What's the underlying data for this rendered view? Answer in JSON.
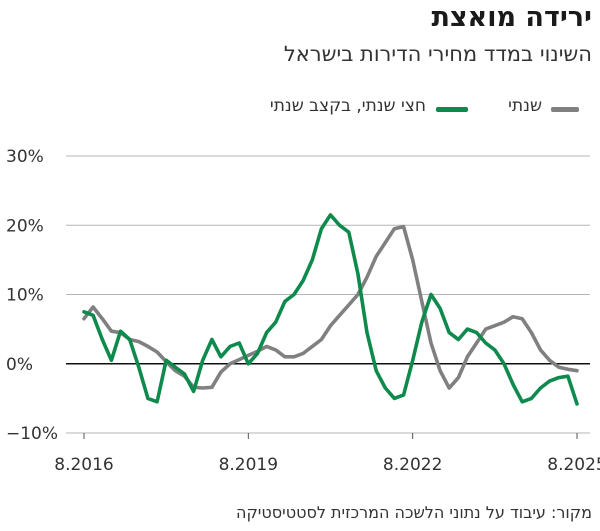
{
  "header": {
    "title": "ירידה מואצת",
    "subtitle": "השינוי במדד מחירי הדירות בישראל"
  },
  "legend": {
    "gray_label": "שנתי",
    "green_label": "חצי שנתי, בקצב שנתי"
  },
  "source": "מקור: עיבוד על נתוני הלשכה המרכזית לסטטיסטיקה",
  "colors": {
    "annual": "#808080",
    "semi_annual": "#0f8a4d",
    "axis": "#111111",
    "grid": "#b5b5b5"
  },
  "chart_data": {
    "type": "line",
    "title": "ירידה מואצת",
    "subtitle": "השינוי במדד מחירי הדירות בישראל",
    "y_unit": "%",
    "ylim": [
      -10,
      30
    ],
    "y_ticks": [
      30,
      20,
      10,
      0,
      -10
    ],
    "y_tick_labels": [
      "30%",
      "20%",
      "10%",
      "0%",
      "−10%"
    ],
    "x_ticks": [
      2016.583,
      2019.583,
      2022.583,
      2025.583
    ],
    "x_tick_labels": [
      "8.2016",
      "8.2019",
      "8.2022",
      "8.2025"
    ],
    "grid": "horizontal",
    "legend_position": "top",
    "series": [
      {
        "name": "שנתי",
        "color": "#808080",
        "x": [
          2016.583,
          2016.75,
          2016.917,
          2017.083,
          2017.25,
          2017.417,
          2017.583,
          2017.75,
          2017.917,
          2018.083,
          2018.25,
          2018.417,
          2018.583,
          2018.75,
          2018.917,
          2019.083,
          2019.25,
          2019.417,
          2019.583,
          2019.75,
          2019.917,
          2020.083,
          2020.25,
          2020.417,
          2020.583,
          2020.75,
          2020.917,
          2021.083,
          2021.25,
          2021.417,
          2021.583,
          2021.75,
          2021.917,
          2022.083,
          2022.25,
          2022.417,
          2022.583,
          2022.75,
          2022.917,
          2023.083,
          2023.25,
          2023.417,
          2023.583,
          2023.75,
          2023.917,
          2024.083,
          2024.25,
          2024.417,
          2024.583,
          2024.75,
          2024.917,
          2025.083,
          2025.25,
          2025.417,
          2025.583
        ],
        "values": [
          6.5,
          8.2,
          6.5,
          4.7,
          4.5,
          3.5,
          3.2,
          2.5,
          1.7,
          0.3,
          -1.0,
          -1.8,
          -3.4,
          -3.5,
          -3.4,
          -1.2,
          0.0,
          0.6,
          1.2,
          1.8,
          2.5,
          2.0,
          1.0,
          1.0,
          1.5,
          2.5,
          3.5,
          5.5,
          7.0,
          8.5,
          10.0,
          12.5,
          15.5,
          17.5,
          19.5,
          19.8,
          15.0,
          9.0,
          3.0,
          -1.0,
          -3.5,
          -2.0,
          1.0,
          3.0,
          5.0,
          5.5,
          6.0,
          6.8,
          6.5,
          4.5,
          2.0,
          0.5,
          -0.5,
          -0.8,
          -1.0
        ]
      },
      {
        "name": "חצי שנתי, בקצב שנתי",
        "color": "#0f8a4d",
        "x": [
          2016.583,
          2016.75,
          2016.917,
          2017.083,
          2017.25,
          2017.417,
          2017.583,
          2017.75,
          2017.917,
          2018.083,
          2018.25,
          2018.417,
          2018.583,
          2018.75,
          2018.917,
          2019.083,
          2019.25,
          2019.417,
          2019.583,
          2019.75,
          2019.917,
          2020.083,
          2020.25,
          2020.417,
          2020.583,
          2020.75,
          2020.917,
          2021.083,
          2021.25,
          2021.417,
          2021.583,
          2021.75,
          2021.917,
          2022.083,
          2022.25,
          2022.417,
          2022.583,
          2022.75,
          2022.917,
          2023.083,
          2023.25,
          2023.417,
          2023.583,
          2023.75,
          2023.917,
          2024.083,
          2024.25,
          2024.417,
          2024.583,
          2024.75,
          2024.917,
          2025.083,
          2025.25,
          2025.417,
          2025.583
        ],
        "values": [
          7.5,
          7.0,
          3.5,
          0.5,
          4.7,
          3.5,
          -0.5,
          -5.0,
          -5.5,
          0.5,
          -0.5,
          -1.5,
          -4.0,
          0.5,
          3.5,
          1.0,
          2.5,
          3.0,
          0.0,
          1.5,
          4.5,
          6.0,
          9.0,
          10.0,
          12.0,
          15.0,
          19.5,
          21.5,
          20.0,
          19.0,
          13.0,
          4.5,
          -1.0,
          -3.5,
          -5.0,
          -4.5,
          0.5,
          6.0,
          10.0,
          8.0,
          4.5,
          3.5,
          5.0,
          4.5,
          3.0,
          2.0,
          0.0,
          -3.0,
          -5.5,
          -5.0,
          -3.5,
          -2.5,
          -2.0,
          -1.8,
          -5.8
        ]
      }
    ]
  }
}
